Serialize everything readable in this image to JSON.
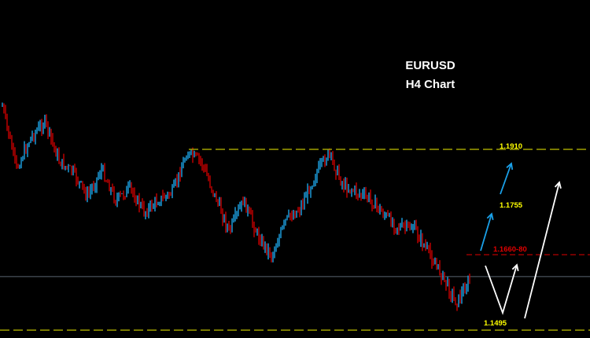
{
  "chart_data": {
    "type": "candlestick",
    "title": "EURUSD",
    "subtitle": "H4 Chart",
    "ylim": [
      1.147,
      1.203
    ],
    "grid": false,
    "colors": {
      "background": "#000000",
      "up": "#1a8fc9",
      "down": "#b00000",
      "support": "#a0a000",
      "pivot": "#e00000",
      "current": "#5a6470",
      "arrow_bull": "#1aa0e8",
      "arrow_scenario": "#ffffff",
      "label_yellow": "#ffff00"
    },
    "close_path": [
      1.2009,
      1.1865,
      1.1937,
      1.1973,
      1.1883,
      1.1856,
      1.1802,
      1.1865,
      1.1793,
      1.182,
      1.1766,
      1.1793,
      1.1811,
      1.1901,
      1.1883,
      1.1802,
      1.1721,
      1.1793,
      1.1712,
      1.1666,
      1.1748,
      1.1775,
      1.1847,
      1.1901,
      1.1829,
      1.1811,
      1.1793,
      1.1757,
      1.173,
      1.173,
      1.1675,
      1.1621,
      1.1558,
      1.1612
    ],
    "levels": [
      {
        "label": "1.1910",
        "price": 1.191,
        "style": "support"
      },
      {
        "label": "1.1755",
        "price": 1.1755,
        "style": "target"
      },
      {
        "label": "1.1660-80",
        "price": 1.1668,
        "style": "pivot"
      },
      {
        "label": "1.1495",
        "price": 1.1495,
        "style": "support"
      }
    ],
    "current_price": 1.1618
  }
}
